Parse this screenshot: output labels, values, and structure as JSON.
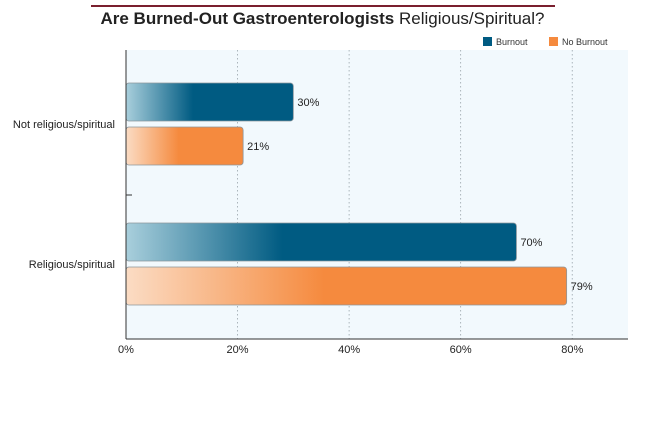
{
  "title": {
    "bold": "Are Burned-Out Gastroenterologists",
    "regular": " Religious/Spiritual?"
  },
  "chart_data": {
    "type": "bar",
    "orientation": "horizontal",
    "categories": [
      "Not religious/spiritual",
      "Religious/spiritual"
    ],
    "series": [
      {
        "name": "Burnout",
        "values": [
          30,
          70
        ],
        "color": "#005b82",
        "labels": [
          "30%",
          "70%"
        ]
      },
      {
        "name": "No Burnout",
        "values": [
          21,
          79
        ],
        "color": "#f58a3e",
        "labels": [
          "21%",
          "79%"
        ]
      }
    ],
    "xlim": [
      0,
      90
    ],
    "xticks": [
      0,
      20,
      40,
      60,
      80
    ],
    "xtick_labels": [
      "0%",
      "20%",
      "40%",
      "60%",
      "80%"
    ],
    "grid": "vertical dotted",
    "legend_position": "top-right"
  }
}
